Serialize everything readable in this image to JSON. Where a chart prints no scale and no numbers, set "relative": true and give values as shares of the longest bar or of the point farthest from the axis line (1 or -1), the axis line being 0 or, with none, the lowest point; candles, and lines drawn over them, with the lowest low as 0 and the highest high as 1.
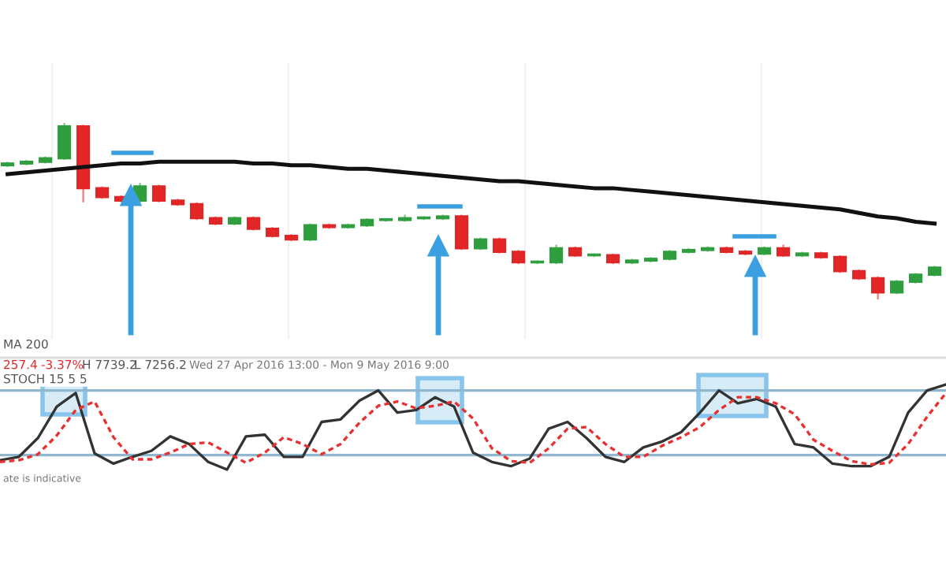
{
  "chart_data": [
    {
      "type": "candlestick",
      "relative": true,
      "categories": [
        null,
        null,
        null,
        null,
        null,
        null,
        null,
        null,
        null,
        null,
        null,
        null,
        null,
        null,
        null,
        null,
        null,
        null,
        null,
        null,
        null,
        null,
        null,
        null,
        null,
        null,
        null,
        null,
        null,
        null,
        null,
        null,
        null,
        null,
        null,
        null,
        null,
        null,
        null,
        null,
        null,
        null,
        null,
        null,
        null,
        null,
        null,
        null,
        null,
        null
      ],
      "ohlc": [
        [
          0.76,
          0.78,
          0.75,
          0.77
        ],
        [
          0.77,
          0.79,
          0.76,
          0.78
        ],
        [
          0.78,
          0.81,
          0.77,
          0.8
        ],
        [
          0.8,
          1.0,
          0.79,
          0.98
        ],
        [
          0.98,
          0.99,
          0.55,
          0.63
        ],
        [
          0.63,
          0.64,
          0.57,
          0.58
        ],
        [
          0.58,
          0.59,
          0.55,
          0.56
        ],
        [
          0.56,
          0.66,
          0.55,
          0.64
        ],
        [
          0.64,
          0.65,
          0.55,
          0.56
        ],
        [
          0.56,
          0.57,
          0.53,
          0.54
        ],
        [
          0.54,
          0.55,
          0.45,
          0.46
        ],
        [
          0.46,
          0.47,
          0.42,
          0.43
        ],
        [
          0.43,
          0.47,
          0.42,
          0.46
        ],
        [
          0.46,
          0.47,
          0.39,
          0.4
        ],
        [
          0.4,
          0.41,
          0.35,
          0.36
        ],
        [
          0.36,
          0.37,
          0.33,
          0.34
        ],
        [
          0.34,
          0.43,
          0.33,
          0.42
        ],
        [
          0.42,
          0.43,
          0.4,
          0.41
        ],
        [
          0.41,
          0.43,
          0.4,
          0.42
        ],
        [
          0.42,
          0.46,
          0.41,
          0.45
        ],
        [
          0.45,
          0.46,
          0.44,
          0.45
        ],
        [
          0.45,
          0.48,
          0.44,
          0.46
        ],
        [
          0.46,
          0.47,
          0.45,
          0.46
        ],
        [
          0.46,
          0.48,
          0.45,
          0.47
        ],
        [
          0.47,
          0.48,
          0.28,
          0.29
        ],
        [
          0.29,
          0.35,
          0.28,
          0.34
        ],
        [
          0.34,
          0.35,
          0.26,
          0.27
        ],
        [
          0.27,
          0.28,
          0.2,
          0.21
        ],
        [
          0.21,
          0.22,
          0.2,
          0.21
        ],
        [
          0.21,
          0.31,
          0.2,
          0.29
        ],
        [
          0.29,
          0.3,
          0.24,
          0.25
        ],
        [
          0.25,
          0.26,
          0.24,
          0.25
        ],
        [
          0.25,
          0.26,
          0.2,
          0.21
        ],
        [
          0.21,
          0.23,
          0.2,
          0.22
        ],
        [
          0.22,
          0.24,
          0.21,
          0.23
        ],
        [
          0.23,
          0.28,
          0.22,
          0.27
        ],
        [
          0.27,
          0.29,
          0.26,
          0.28
        ],
        [
          0.28,
          0.3,
          0.27,
          0.29
        ],
        [
          0.29,
          0.3,
          0.26,
          0.27
        ],
        [
          0.27,
          0.28,
          0.25,
          0.26
        ],
        [
          0.26,
          0.3,
          0.25,
          0.29
        ],
        [
          0.29,
          0.31,
          0.24,
          0.25
        ],
        [
          0.25,
          0.27,
          0.24,
          0.26
        ],
        [
          0.26,
          0.27,
          0.23,
          0.24
        ],
        [
          0.24,
          0.25,
          0.15,
          0.16
        ],
        [
          0.16,
          0.17,
          0.11,
          0.12
        ],
        [
          0.12,
          0.13,
          0.0,
          0.04
        ],
        [
          0.04,
          0.11,
          0.03,
          0.1
        ],
        [
          0.1,
          0.15,
          0.09,
          0.14
        ],
        [
          0.14,
          0.19,
          0.13,
          0.18
        ]
      ],
      "series": [
        {
          "type": "line",
          "color": "#111111",
          "values": [
            0.71,
            0.72,
            0.73,
            0.74,
            0.75,
            0.76,
            0.77,
            0.77,
            0.78,
            0.78,
            0.78,
            0.78,
            0.78,
            0.77,
            0.77,
            0.76,
            0.76,
            0.75,
            0.74,
            0.74,
            0.73,
            0.72,
            0.71,
            0.7,
            0.69,
            0.68,
            0.67,
            0.67,
            0.66,
            0.65,
            0.64,
            0.63,
            0.63,
            0.62,
            0.61,
            0.6,
            0.59,
            0.58,
            0.57,
            0.56,
            0.55,
            0.54,
            0.53,
            0.52,
            0.51,
            0.49,
            0.47,
            0.46,
            0.44,
            0.43
          ]
        }
      ],
      "annotations": [
        "MA 200",
        "257.4",
        "-3.37%",
        "H 7739.2",
        "L 7256.2",
        "Wed 27 Apr 2016 13:00 - Mon 9 May 2016 9:00"
      ]
    },
    {
      "type": "line",
      "relative": true,
      "categories": [
        null,
        null,
        null,
        null,
        null,
        null,
        null,
        null,
        null,
        null,
        null,
        null,
        null,
        null,
        null,
        null,
        null,
        null,
        null,
        null,
        null,
        null,
        null,
        null,
        null,
        null,
        null,
        null,
        null,
        null,
        null,
        null,
        null,
        null,
        null,
        null,
        null,
        null,
        null,
        null,
        null,
        null,
        null,
        null,
        null,
        null,
        null,
        null,
        null,
        null,
        null
      ],
      "series": [
        {
          "color": "#333333",
          "values": [
            0.11,
            0.15,
            0.37,
            0.74,
            0.9,
            0.19,
            0.07,
            0.15,
            0.22,
            0.39,
            0.3,
            0.09,
            0.0,
            0.39,
            0.41,
            0.15,
            0.15,
            0.56,
            0.59,
            0.81,
            0.93,
            0.67,
            0.7,
            0.85,
            0.74,
            0.2,
            0.09,
            0.04,
            0.13,
            0.48,
            0.56,
            0.37,
            0.15,
            0.09,
            0.26,
            0.33,
            0.44,
            0.67,
            0.93,
            0.78,
            0.83,
            0.74,
            0.3,
            0.26,
            0.07,
            0.04,
            0.04,
            0.15,
            0.67,
            0.93,
            1.0
          ]
        },
        {
          "color": "#e83030",
          "line_style": "dashed",
          "values": [
            0.09,
            0.11,
            0.18,
            0.4,
            0.7,
            0.8,
            0.38,
            0.12,
            0.12,
            0.2,
            0.3,
            0.32,
            0.2,
            0.08,
            0.2,
            0.38,
            0.3,
            0.18,
            0.3,
            0.55,
            0.75,
            0.8,
            0.72,
            0.75,
            0.8,
            0.6,
            0.25,
            0.1,
            0.08,
            0.25,
            0.48,
            0.5,
            0.3,
            0.15,
            0.15,
            0.28,
            0.38,
            0.5,
            0.7,
            0.85,
            0.85,
            0.78,
            0.65,
            0.35,
            0.22,
            0.1,
            0.06,
            0.08,
            0.3,
            0.62,
            0.9
          ]
        }
      ],
      "ref_lines": [
        {
          "axis": "y",
          "value": 0.93,
          "color": "#8fb8d0"
        },
        {
          "axis": "y",
          "value": 0.17,
          "color": "#8fb8d0"
        }
      ],
      "annotations": [
        "STOCH 15 5 5",
        "ate is indicative"
      ]
    }
  ]
}
